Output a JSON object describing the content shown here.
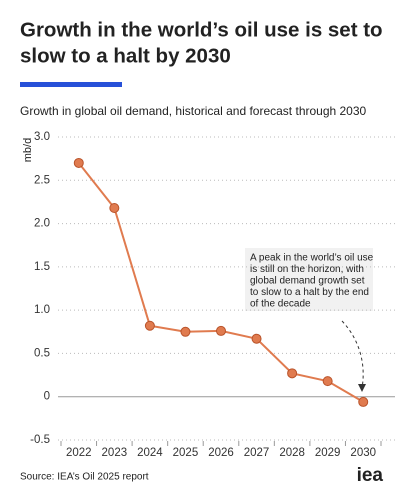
{
  "chart_data": {
    "type": "line",
    "title": [
      "Growth in the world’s oil use is set to",
      "slow to a halt by 2030"
    ],
    "subtitle": "Growth in global oil demand, historical and forecast through 2030",
    "y_label": "mb/d",
    "categories": [
      "2022",
      "2023",
      "2024",
      "2025",
      "2026",
      "2027",
      "2028",
      "2029",
      "2030"
    ],
    "series": [
      {
        "name": "Growth in global oil demand",
        "color": "#e07b4f",
        "values": [
          2.7,
          2.18,
          0.82,
          0.75,
          0.76,
          0.67,
          0.27,
          0.18,
          -0.06
        ]
      }
    ],
    "ylim": [
      -0.5,
      3.0
    ],
    "yticks": [
      {
        "value": 3.0,
        "label": "3.0"
      },
      2.5,
      {
        "value": 2.0,
        "label": "2.0"
      },
      1.5,
      {
        "value": 1.0,
        "label": "1.0"
      },
      0.5,
      0,
      -0.5
    ],
    "grid": true,
    "annotation": [
      "A peak in the world’s oil use",
      "is still on the horizon, with",
      "global demand growth set",
      "to slow to a halt by the end",
      "of the decade"
    ],
    "source": "Source: IEA’s Oil 2025 report",
    "logo": "iea"
  }
}
